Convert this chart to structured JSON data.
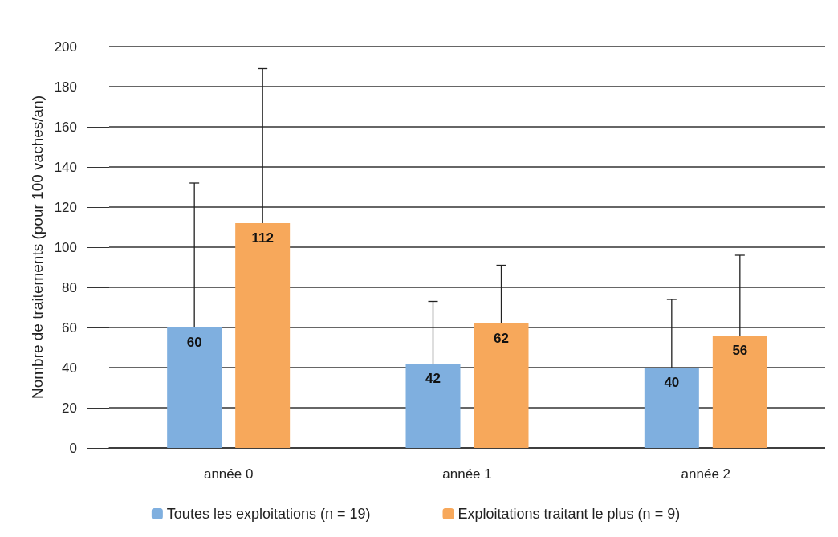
{
  "chart_data": {
    "type": "bar",
    "ylabel": "Nombre de traitements (pour 100 vaches/an)",
    "categories": [
      "année 0",
      "année 1",
      "année 2"
    ],
    "series": [
      {
        "name": "Toutes les exploitations (n = 19)",
        "color": "#7fafdf",
        "values": [
          60,
          42,
          40
        ],
        "errors": [
          [
            60,
            132
          ],
          [
            42,
            73
          ],
          [
            40,
            74
          ]
        ]
      },
      {
        "name": "Exploitations traitant le plus (n = 9)",
        "color": "#f7a85b",
        "values": [
          112,
          62,
          56
        ],
        "errors": [
          [
            112,
            189
          ],
          [
            62,
            91
          ],
          [
            56,
            96
          ]
        ]
      }
    ],
    "ylim": [
      0,
      200
    ],
    "yticks": [
      0,
      20,
      40,
      60,
      80,
      100,
      120,
      140,
      160,
      180,
      200
    ],
    "grid": "y",
    "legend": "bottom",
    "data_labels": true
  }
}
